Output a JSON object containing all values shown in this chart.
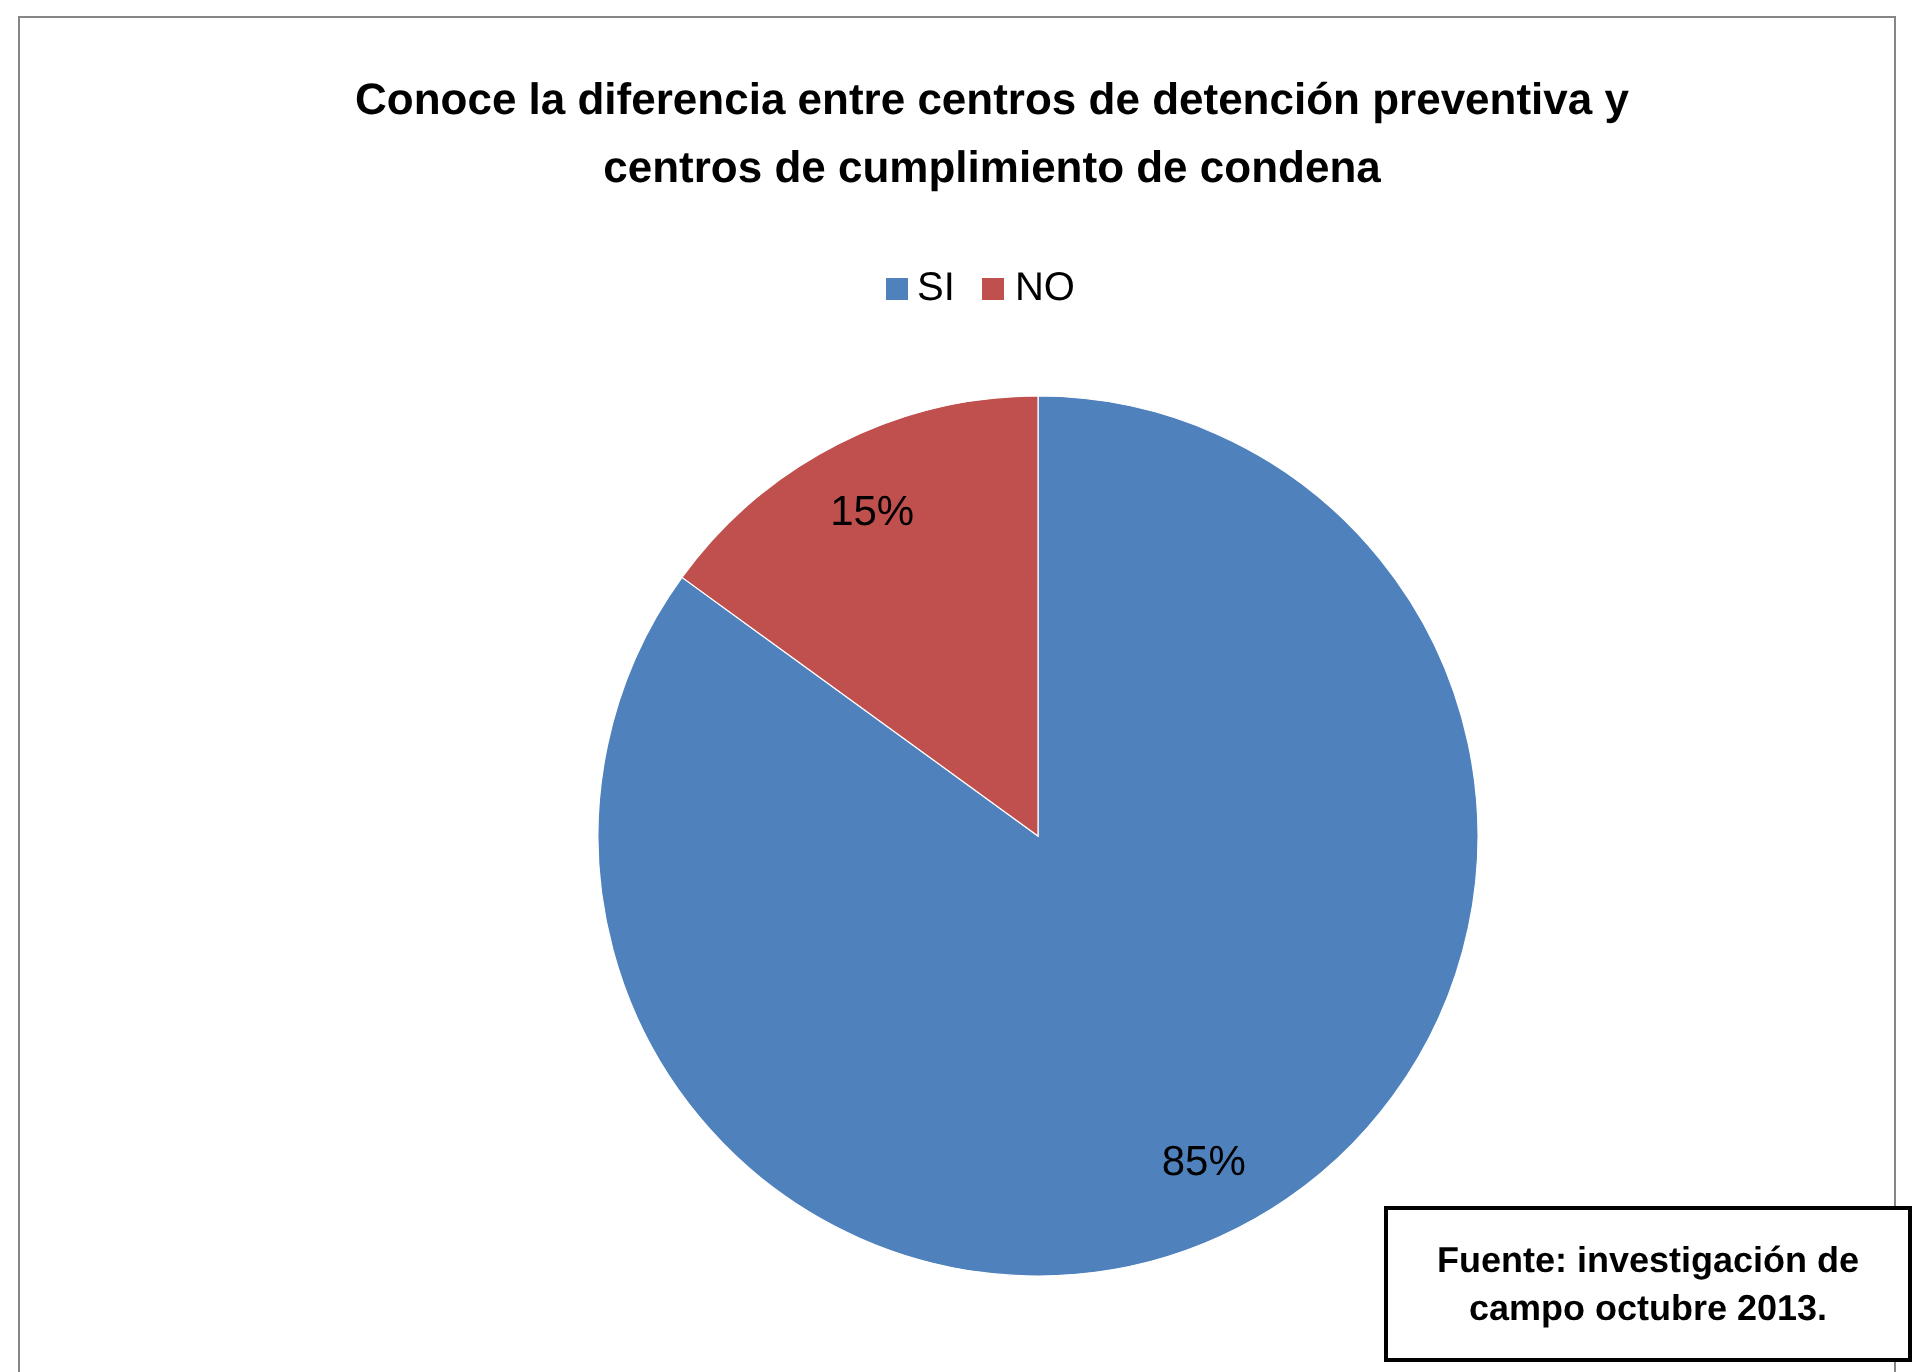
{
  "chart_data": {
    "type": "pie",
    "title": "Conoce la diferencia entre centros de detención preventiva y centros de cumplimiento de condena",
    "categories": [
      "SI",
      "NO"
    ],
    "values": [
      85,
      15
    ],
    "colors": [
      "#4f81bd",
      "#c0504d"
    ],
    "value_labels": [
      "85%",
      "15%"
    ],
    "legend": "top",
    "annotations": [
      "Fuente: investigación de campo octubre 2013."
    ]
  }
}
